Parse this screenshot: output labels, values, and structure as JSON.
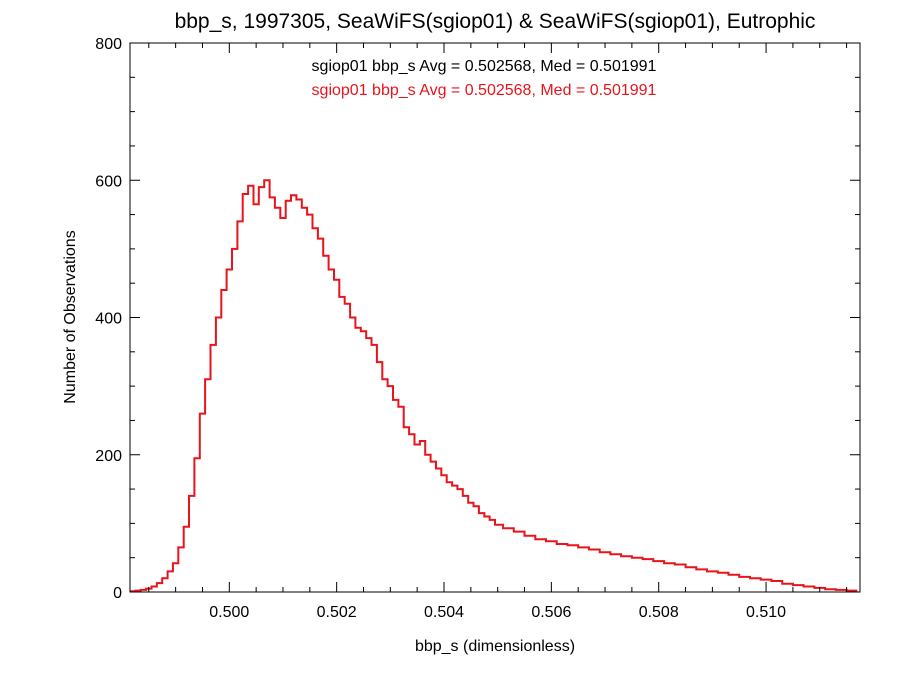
{
  "chart_data": {
    "type": "histogram",
    "title": "bbp_s, 1997305, SeaWiFS(sgiop01) & SeaWiFS(sgiop01), Eutrophic",
    "xlabel": "bbp_s (dimensionless)",
    "ylabel": "Number of Observations",
    "xlim": [
      0.49815,
      0.51175
    ],
    "ylim": [
      0,
      800
    ],
    "xticks": [
      0.5,
      0.502,
      0.504,
      0.506,
      0.508,
      0.51
    ],
    "xtick_labels": [
      "0.500",
      "0.502",
      "0.504",
      "0.506",
      "0.508",
      "0.510"
    ],
    "yticks": [
      0,
      200,
      400,
      600,
      800
    ],
    "ytick_labels": [
      "0",
      "200",
      "400",
      "600",
      "800"
    ],
    "grid": false,
    "legend": [
      {
        "text": "sgiop01 bbp_s Avg = 0.502568, Med = 0.501991",
        "color": "#000000"
      },
      {
        "text": "sgiop01 bbp_s Avg = 0.502568, Med = 0.501991",
        "color": "#e8141c"
      }
    ],
    "series": [
      {
        "color": "#e8141c",
        "x": [
          0.4982,
          0.4983,
          0.4984,
          0.4985,
          0.4986,
          0.4987,
          0.4988,
          0.4989,
          0.499,
          0.4991,
          0.4992,
          0.4993,
          0.4994,
          0.4995,
          0.4996,
          0.4997,
          0.4998,
          0.4999,
          0.5,
          0.5001,
          0.5002,
          0.5003,
          0.5004,
          0.5005,
          0.5006,
          0.5007,
          0.5008,
          0.5009,
          0.501,
          0.5011,
          0.5012,
          0.5013,
          0.5014,
          0.5015,
          0.5016,
          0.5017,
          0.5018,
          0.5019,
          0.502,
          0.5021,
          0.5022,
          0.5023,
          0.5024,
          0.5025,
          0.5026,
          0.5027,
          0.5028,
          0.5029,
          0.503,
          0.5031,
          0.5032,
          0.5033,
          0.5034,
          0.5035,
          0.5036,
          0.5037,
          0.5038,
          0.5039,
          0.504,
          0.5041,
          0.5042,
          0.5043,
          0.5044,
          0.5045,
          0.5046,
          0.5047,
          0.5048,
          0.5049,
          0.505,
          0.5052,
          0.5054,
          0.5056,
          0.5058,
          0.506,
          0.5062,
          0.5064,
          0.5066,
          0.5068,
          0.507,
          0.5072,
          0.5074,
          0.5076,
          0.5078,
          0.508,
          0.5082,
          0.5084,
          0.5086,
          0.5088,
          0.509,
          0.5092,
          0.5094,
          0.5096,
          0.5098,
          0.51,
          0.5102,
          0.5104,
          0.5106,
          0.5108,
          0.511,
          0.5112,
          0.5114,
          0.5116
        ],
        "values": [
          1,
          2,
          3,
          5,
          8,
          13,
          20,
          30,
          42,
          65,
          95,
          140,
          195,
          260,
          310,
          360,
          400,
          440,
          470,
          500,
          540,
          580,
          592,
          565,
          590,
          600,
          575,
          560,
          545,
          570,
          578,
          572,
          560,
          550,
          530,
          515,
          490,
          470,
          455,
          430,
          420,
          400,
          385,
          380,
          370,
          360,
          335,
          310,
          300,
          280,
          270,
          240,
          230,
          215,
          220,
          200,
          190,
          180,
          170,
          160,
          155,
          150,
          140,
          130,
          125,
          115,
          110,
          105,
          98,
          93,
          88,
          82,
          77,
          74,
          70,
          68,
          65,
          62,
          58,
          55,
          52,
          50,
          48,
          45,
          42,
          40,
          36,
          33,
          30,
          28,
          25,
          22,
          20,
          18,
          16,
          12,
          10,
          8,
          6,
          4,
          3,
          2
        ]
      }
    ]
  }
}
